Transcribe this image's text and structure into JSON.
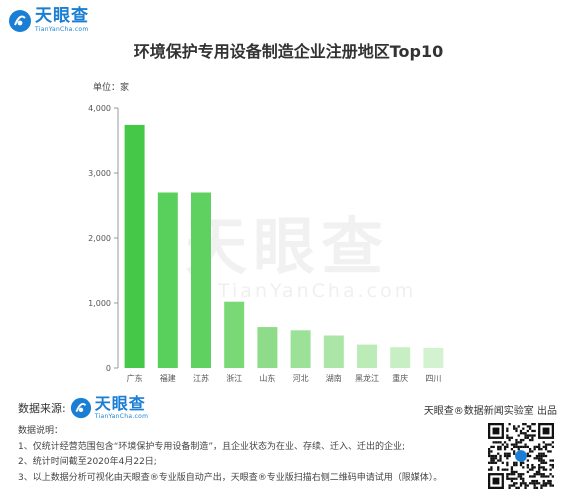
{
  "header": {
    "logo_name": "天眼查",
    "logo_url": "TianYanCha.com"
  },
  "chart_data": {
    "type": "bar",
    "title": "环境保护专用设备制造企业注册地区Top10",
    "unit_label": "单位：家",
    "categories": [
      "广东",
      "福建",
      "江苏",
      "浙江",
      "山东",
      "河北",
      "湖南",
      "黑龙江",
      "重庆",
      "四川"
    ],
    "values": [
      3740,
      2700,
      2700,
      1020,
      630,
      580,
      500,
      360,
      320,
      310
    ],
    "ylim": [
      0,
      4000
    ],
    "yticks": [
      0,
      1000,
      2000,
      3000,
      4000
    ],
    "ytick_labels": [
      "0",
      "1,000",
      "2,000",
      "3,000",
      "4,000"
    ],
    "bar_colors": [
      "#45c748",
      "#59d05b",
      "#5fd160",
      "#7ad877",
      "#8edc8a",
      "#9ce198",
      "#abe6a6",
      "#bbebb6",
      "#c8efc3",
      "#d3f2cf"
    ],
    "grid": false,
    "legend": "none"
  },
  "watermark": {
    "name": "天眼查",
    "url": "TianYanCha.com"
  },
  "footer": {
    "source_label": "数据来源:",
    "source_logo_name": "天眼查",
    "source_logo_url": "TianYanCha.com",
    "lab_text": "天眼查®数据新闻实验室 出品",
    "notes_title": "数据说明：",
    "notes": [
      "1、仅统计经营范围包含“环境保护专用设备制造”，且企业状态为在业、存续、迁入、迁出的企业;",
      "2、统计时间截至2020年4月22日;",
      "3、以上数据分析可视化由天眼查®专业版自动产出，天眼查®专业版扫描右侧二维码申请试用（限媒体）。"
    ]
  },
  "colors": {
    "brand": "#1a7fd4",
    "axis": "#999999"
  },
  "icons": {
    "logo": "tianyancha-logo-icon",
    "qr": "qr-code-icon"
  }
}
